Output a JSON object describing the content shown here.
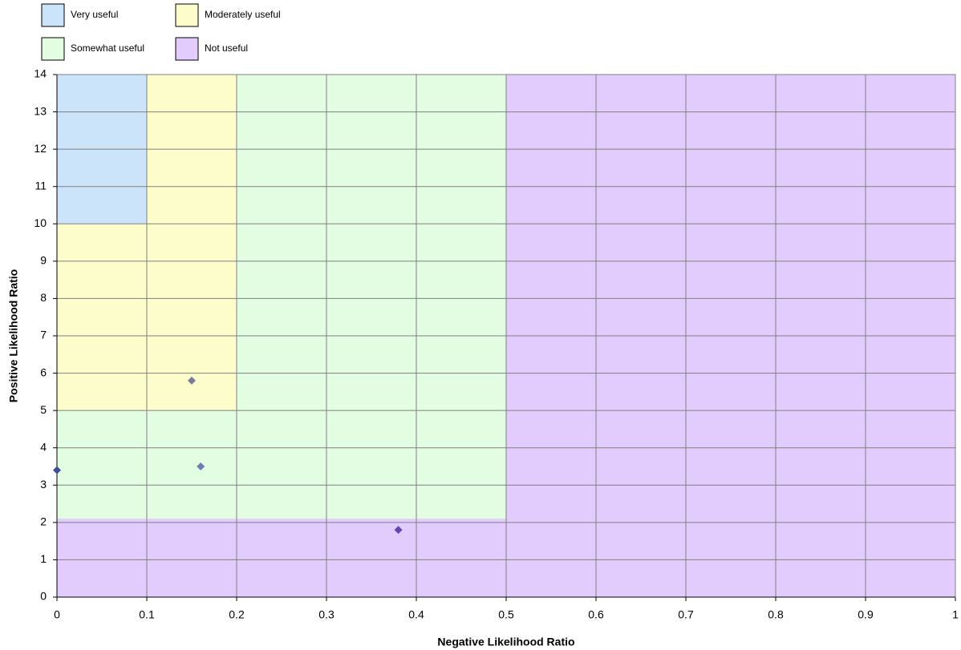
{
  "chart_data": {
    "type": "scatter",
    "x_label": "Negative Likelihood Ratio",
    "y_label": "Positive Likelihood Ratio",
    "x": [
      0,
      0.15,
      0.16,
      0.38
    ],
    "values": [
      3.4,
      5.8,
      3.5,
      1.8
    ],
    "point_colors": [
      "#3f4f96",
      "#7a7a9a",
      "#6a80b4",
      "#6446b0"
    ],
    "regions": [
      {
        "name": "Very useful",
        "color": "#cce4fa",
        "xlim": [
          0,
          0.1
        ],
        "ylim": [
          10,
          14
        ]
      },
      {
        "name": "Moderately useful",
        "color": "#fdfdcc",
        "xlim": [
          0,
          0.2
        ],
        "ylim": [
          5,
          14
        ]
      },
      {
        "name": "Somewhat useful",
        "color": "#e2fde2",
        "xlim": [
          0,
          0.5
        ],
        "ylim": [
          2.1,
          14
        ]
      },
      {
        "name": "Not useful",
        "color": "#e2ccfd",
        "xlim": [
          0,
          1
        ],
        "ylim": [
          0,
          14
        ]
      }
    ],
    "xlim": [
      0,
      1
    ],
    "ylim": [
      0,
      14
    ],
    "xticks": [
      0,
      0.1,
      0.2,
      0.3,
      0.4,
      0.5,
      0.6,
      0.7,
      0.8,
      0.9,
      1
    ],
    "yticks": [
      0,
      1,
      2,
      3,
      4,
      5,
      6,
      7,
      8,
      9,
      10,
      11,
      12,
      13,
      14
    ],
    "grid": true
  }
}
